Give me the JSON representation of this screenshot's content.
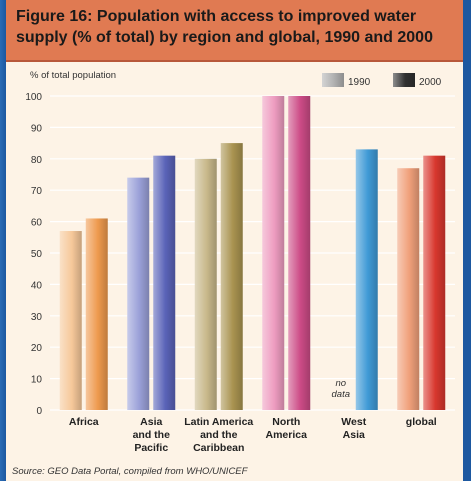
{
  "title": "Figure 16: Population with access to improved water supply (% of total) by region and global, 1990 and 2000",
  "source": "Source:  GEO Data Portal, compiled from WHO/UNICEF",
  "colors": {
    "africa": [
      "#f6c89a",
      "#ee9a4e"
    ],
    "asia": [
      "#9aa0d8",
      "#5a63b8"
    ],
    "latin": [
      "#c8b88a",
      "#a99350"
    ],
    "north": [
      "#ee9cc0",
      "#cc4b86"
    ],
    "west": [
      "#9fcdee",
      "#3f9ad6"
    ],
    "global": [
      "#f0a07a",
      "#d8372e"
    ]
  },
  "chart_data": {
    "type": "bar",
    "ylabel": "% of total population",
    "ylim": [
      0,
      100
    ],
    "yticks": [
      0,
      10,
      20,
      30,
      40,
      50,
      60,
      70,
      80,
      90,
      100
    ],
    "categories": [
      "Africa",
      "Asia and the Pacific",
      "Latin America and the Caribbean",
      "North America",
      "West Asia",
      "global"
    ],
    "category_lines": [
      [
        "Africa"
      ],
      [
        "Asia",
        "and the",
        "Pacific"
      ],
      [
        "Latin America",
        "and the",
        "Caribbean"
      ],
      [
        "North",
        "America"
      ],
      [
        "West",
        "Asia"
      ],
      [
        "global"
      ]
    ],
    "series": [
      {
        "name": "1990",
        "values": [
          57,
          74,
          80,
          100,
          null,
          77
        ]
      },
      {
        "name": "2000",
        "values": [
          61,
          81,
          85,
          100,
          83,
          81
        ]
      }
    ],
    "annotations": [
      {
        "category": "West Asia",
        "series": "1990",
        "text": "no data",
        "lines": [
          "no",
          "data"
        ]
      }
    ],
    "legend": "top-right"
  }
}
